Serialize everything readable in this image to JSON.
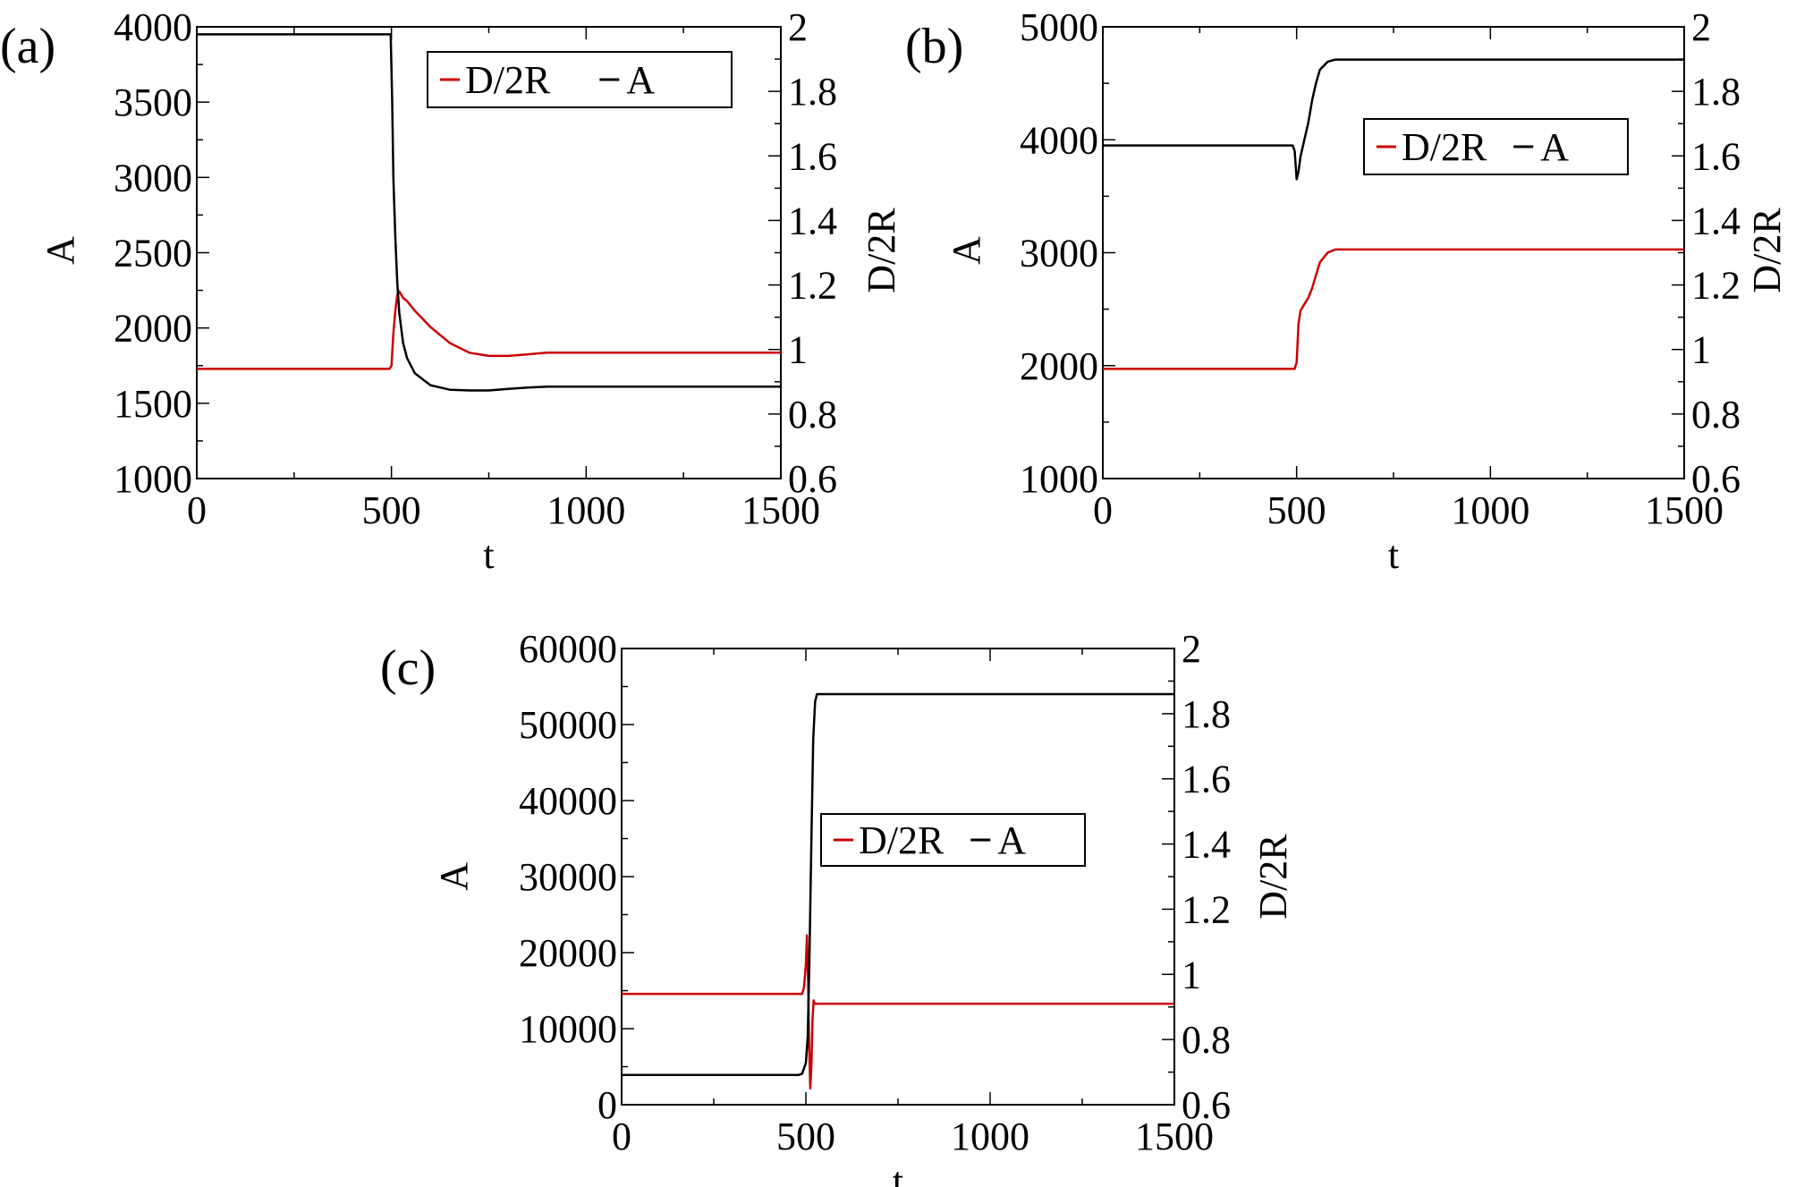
{
  "chart_data": [
    {
      "panel_label": "(a)",
      "type": "line",
      "xlabel": "t",
      "ylabel": "A",
      "y2label": "D/2R",
      "xlim": [
        0,
        1500
      ],
      "ylim": [
        1000,
        4000
      ],
      "y2lim": [
        0.6,
        2
      ],
      "xticks": [
        "0",
        "500",
        "1000",
        "1500"
      ],
      "yticks": [
        "1000",
        "1500",
        "2000",
        "2500",
        "3000",
        "3500",
        "4000"
      ],
      "y2ticks": [
        "0.6",
        "0.8",
        "1",
        "1.2",
        "1.4",
        "1.6",
        "1.8",
        "2"
      ],
      "legend": {
        "position": "top-right",
        "entries": [
          "D/2R",
          "A"
        ]
      },
      "series": [
        {
          "name": "D/2R",
          "axis": "right",
          "color": "#cc0000",
          "x": [
            0,
            495,
            500,
            505,
            510,
            515,
            520,
            530,
            540,
            560,
            600,
            650,
            700,
            750,
            800,
            850,
            900,
            1000,
            1500
          ],
          "y": [
            0.94,
            0.94,
            0.95,
            1.05,
            1.12,
            1.17,
            1.18,
            1.16,
            1.15,
            1.12,
            1.07,
            1.02,
            0.99,
            0.98,
            0.98,
            0.985,
            0.99,
            0.99,
            0.99
          ]
        },
        {
          "name": "A",
          "axis": "left",
          "color": "#000000",
          "x": [
            0,
            498,
            502,
            505,
            510,
            515,
            520,
            530,
            540,
            560,
            600,
            650,
            700,
            750,
            800,
            850,
            900,
            1000,
            1500
          ],
          "y": [
            3950,
            3950,
            3500,
            3000,
            2600,
            2300,
            2100,
            1900,
            1800,
            1700,
            1620,
            1590,
            1585,
            1585,
            1595,
            1605,
            1610,
            1610,
            1610
          ]
        }
      ]
    },
    {
      "panel_label": "(b)",
      "type": "line",
      "xlabel": "t",
      "ylabel": "A",
      "y2label": "D/2R",
      "xlim": [
        0,
        1500
      ],
      "ylim": [
        1000,
        5000
      ],
      "y2lim": [
        0.6,
        2
      ],
      "xticks": [
        "0",
        "500",
        "1000",
        "1500"
      ],
      "yticks": [
        "1000",
        "2000",
        "3000",
        "4000",
        "5000"
      ],
      "y2ticks": [
        "0.6",
        "0.8",
        "1",
        "1.2",
        "1.4",
        "1.6",
        "1.8",
        "2"
      ],
      "legend": {
        "position": "top-right",
        "entries": [
          "D/2R",
          "A"
        ]
      },
      "series": [
        {
          "name": "D/2R",
          "axis": "right",
          "color": "#cc0000",
          "x": [
            0,
            495,
            500,
            505,
            510,
            520,
            530,
            540,
            550,
            560,
            580,
            600,
            620,
            700,
            1500
          ],
          "y": [
            0.94,
            0.94,
            0.96,
            1.08,
            1.12,
            1.14,
            1.16,
            1.19,
            1.23,
            1.27,
            1.3,
            1.31,
            1.31,
            1.31,
            1.31
          ]
        },
        {
          "name": "A",
          "axis": "left",
          "color": "#000000",
          "x": [
            0,
            490,
            495,
            500,
            505,
            510,
            520,
            530,
            540,
            550,
            560,
            580,
            600,
            620,
            700,
            1500
          ],
          "y": [
            3950,
            3950,
            3900,
            3650,
            3720,
            3850,
            4000,
            4150,
            4350,
            4500,
            4620,
            4690,
            4710,
            4710,
            4710,
            4710
          ]
        }
      ]
    },
    {
      "panel_label": "(c)",
      "type": "line",
      "xlabel": "t",
      "ylabel": "A",
      "y2label": "D/2R",
      "xlim": [
        0,
        1500
      ],
      "ylim": [
        0,
        60000
      ],
      "y2lim": [
        0.6,
        2
      ],
      "xticks": [
        "0",
        "500",
        "1000",
        "1500"
      ],
      "yticks": [
        "0",
        "10000",
        "20000",
        "30000",
        "40000",
        "50000",
        "60000"
      ],
      "y2ticks": [
        "0.6",
        "0.8",
        "1",
        "1.2",
        "1.4",
        "1.6",
        "1.8",
        "2"
      ],
      "legend": {
        "position": "center-right",
        "entries": [
          "D/2R",
          "A"
        ]
      },
      "series": [
        {
          "name": "D/2R",
          "axis": "right",
          "color": "#cc0000",
          "x": [
            0,
            490,
            495,
            500,
            503,
            506,
            509,
            512,
            515,
            518,
            521,
            524,
            530,
            1500
          ],
          "y": [
            0.94,
            0.94,
            0.96,
            1.03,
            1.12,
            0.98,
            0.78,
            0.65,
            0.72,
            0.86,
            0.92,
            0.91,
            0.91,
            0.91
          ]
        },
        {
          "name": "A",
          "axis": "left",
          "color": "#000000",
          "x": [
            0,
            480,
            490,
            500,
            505,
            510,
            515,
            520,
            525,
            530,
            540,
            1500
          ],
          "y": [
            3900,
            3900,
            4100,
            5500,
            9000,
            20000,
            35000,
            48000,
            53000,
            54000,
            54000,
            54000
          ]
        }
      ]
    }
  ]
}
